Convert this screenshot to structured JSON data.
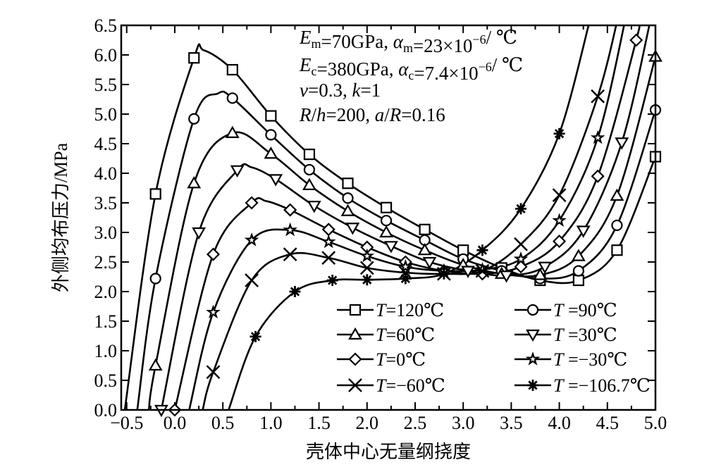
{
  "chart_data": {
    "type": "line",
    "xlabel": "壳体中心无量纲挠度",
    "ylabel": "外侧均布压力/MPa",
    "xlim": [
      -0.557,
      5.0
    ],
    "ylim": [
      0,
      6.5
    ],
    "xticks": [
      "−0.5",
      "0.0",
      "0.5",
      "1.0",
      "1.5",
      "2.0",
      "2.5",
      "3.0",
      "3.5",
      "4.0",
      "4.5",
      "5.0"
    ],
    "xtick_values": [
      -0.5,
      0,
      0.5,
      1,
      1.5,
      2,
      2.5,
      3,
      3.5,
      4,
      4.5,
      5
    ],
    "yticks": [
      "0.0",
      "0.5",
      "1.0",
      "1.5",
      "2.0",
      "2.5",
      "3.0",
      "3.5",
      "4.0",
      "4.5",
      "5.0",
      "5.5",
      "6.0",
      "6.5"
    ],
    "ytick_values": [
      0,
      0.5,
      1,
      1.5,
      2,
      2.5,
      3,
      3.5,
      4,
      4.5,
      5,
      5.5,
      6,
      6.5
    ],
    "grid": false,
    "legend_placement": "bottom-right",
    "annotations": [
      [
        {
          "t": "E",
          "s": "i"
        },
        {
          "t": "m",
          "s": "sub"
        },
        {
          "t": "=70GPa,  ",
          "s": ""
        },
        {
          "t": "α",
          "s": "i"
        },
        {
          "t": "m",
          "s": "sub"
        },
        {
          "t": "=23×10",
          "s": ""
        },
        {
          "t": "−6",
          "s": "sup"
        },
        {
          "t": "/ ℃",
          "s": ""
        }
      ],
      [
        {
          "t": "E",
          "s": "i"
        },
        {
          "t": "c",
          "s": "sub"
        },
        {
          "t": "=380GPa, ",
          "s": ""
        },
        {
          "t": "α",
          "s": "i"
        },
        {
          "t": "c",
          "s": "sub"
        },
        {
          "t": "=7.4×10",
          "s": ""
        },
        {
          "t": "−6",
          "s": "sup"
        },
        {
          "t": "/ ℃",
          "s": ""
        }
      ],
      [
        {
          "t": "ν",
          "s": "i"
        },
        {
          "t": "=0.3, ",
          "s": ""
        },
        {
          "t": "k",
          "s": "i"
        },
        {
          "t": "=1",
          "s": ""
        }
      ],
      [
        {
          "t": "R",
          "s": "i"
        },
        {
          "t": "/",
          "s": ""
        },
        {
          "t": "h",
          "s": "i"
        },
        {
          "t": "=200, ",
          "s": ""
        },
        {
          "t": "a",
          "s": "i"
        },
        {
          "t": "/",
          "s": ""
        },
        {
          "t": "R",
          "s": "i"
        },
        {
          "t": "=0.16",
          "s": ""
        }
      ]
    ],
    "series": [
      {
        "name": "T=120℃",
        "marker": "square",
        "points": [
          [
            -0.2,
            3.65
          ],
          [
            0.2,
            5.95
          ],
          [
            0.6,
            5.75
          ],
          [
            1.0,
            4.97
          ],
          [
            1.4,
            4.32
          ],
          [
            1.8,
            3.83
          ],
          [
            2.2,
            3.42
          ],
          [
            2.6,
            3.05
          ],
          [
            3.0,
            2.7
          ],
          [
            3.4,
            2.4
          ],
          [
            3.8,
            2.19
          ],
          [
            4.2,
            2.19
          ],
          [
            4.6,
            2.7
          ],
          [
            5.0,
            4.28
          ]
        ],
        "curve_extra": [
          [
            -0.52,
            0
          ],
          [
            0.3,
            6.08
          ]
        ]
      },
      {
        "name": "T =90℃",
        "marker": "circle",
        "points": [
          [
            -0.2,
            2.22
          ],
          [
            0.2,
            4.92
          ],
          [
            0.6,
            5.27
          ],
          [
            1.0,
            4.65
          ],
          [
            1.4,
            4.06
          ],
          [
            1.8,
            3.58
          ],
          [
            2.2,
            3.2
          ],
          [
            2.6,
            2.87
          ],
          [
            3.0,
            2.55
          ],
          [
            3.4,
            2.35
          ],
          [
            3.8,
            2.22
          ],
          [
            4.2,
            2.35
          ],
          [
            4.6,
            3.12
          ],
          [
            5.0,
            5.07
          ]
        ],
        "curve_extra": [
          [
            -0.39,
            0
          ],
          [
            0.45,
            5.35
          ]
        ]
      },
      {
        "name": "T=60℃",
        "marker": "triangle-up",
        "points": [
          [
            -0.2,
            0.75
          ],
          [
            0.2,
            3.83
          ],
          [
            0.6,
            4.68
          ],
          [
            1.0,
            4.33
          ],
          [
            1.4,
            3.8
          ],
          [
            1.8,
            3.36
          ],
          [
            2.2,
            3.0
          ],
          [
            2.6,
            2.7
          ],
          [
            3.0,
            2.45
          ],
          [
            3.4,
            2.3
          ],
          [
            3.8,
            2.28
          ],
          [
            4.2,
            2.6
          ],
          [
            4.6,
            3.62
          ],
          [
            5.0,
            5.97
          ]
        ],
        "curve_extra": [
          [
            -0.27,
            0
          ]
        ]
      },
      {
        "name": "T =30℃",
        "marker": "triangle-down",
        "points": [
          [
            -0.14,
            0.0
          ],
          [
            0.25,
            3.0
          ],
          [
            0.65,
            4.05
          ],
          [
            1.05,
            3.9
          ],
          [
            1.45,
            3.45
          ],
          [
            1.85,
            3.08
          ],
          [
            2.25,
            2.77
          ],
          [
            2.65,
            2.5
          ],
          [
            3.05,
            2.35
          ],
          [
            3.45,
            2.27
          ],
          [
            3.85,
            2.42
          ],
          [
            4.25,
            3.03
          ],
          [
            4.65,
            4.52
          ]
        ],
        "curve_extra": [
          [
            0.8,
            4.1
          ],
          [
            4.95,
            6.6
          ]
        ]
      },
      {
        "name": "T=0℃",
        "marker": "diamond",
        "points": [
          [
            0.0,
            0.0
          ],
          [
            0.4,
            2.63
          ],
          [
            0.8,
            3.5
          ],
          [
            1.2,
            3.38
          ],
          [
            1.6,
            3.05
          ],
          [
            2.0,
            2.75
          ],
          [
            2.4,
            2.5
          ],
          [
            2.8,
            2.35
          ],
          [
            3.2,
            2.3
          ],
          [
            3.6,
            2.42
          ],
          [
            4.0,
            2.85
          ],
          [
            4.4,
            3.95
          ],
          [
            4.8,
            6.25
          ]
        ],
        "curve_extra": [
          [
            0.95,
            3.53
          ],
          [
            4.85,
            6.7
          ]
        ]
      },
      {
        "name": "T =−30℃",
        "marker": "star",
        "points": [
          [
            0.4,
            1.65
          ],
          [
            0.8,
            2.87
          ],
          [
            1.2,
            3.04
          ],
          [
            1.6,
            2.84
          ],
          [
            2.0,
            2.6
          ],
          [
            2.4,
            2.42
          ],
          [
            2.8,
            2.35
          ],
          [
            3.2,
            2.37
          ],
          [
            3.6,
            2.55
          ],
          [
            4.0,
            3.2
          ],
          [
            4.4,
            4.6
          ]
        ],
        "curve_extra": [
          [
            0.15,
            0
          ],
          [
            4.7,
            6.7
          ]
        ]
      },
      {
        "name": "T=−60℃",
        "marker": "x",
        "points": [
          [
            0.4,
            0.64
          ],
          [
            0.8,
            2.19
          ],
          [
            1.2,
            2.63
          ],
          [
            1.6,
            2.57
          ],
          [
            2.0,
            2.4
          ],
          [
            2.4,
            2.32
          ],
          [
            2.8,
            2.3
          ],
          [
            3.2,
            2.35
          ],
          [
            3.6,
            2.8
          ],
          [
            4.0,
            3.63
          ],
          [
            4.4,
            5.3
          ]
        ],
        "curve_extra": [
          [
            0.29,
            0
          ],
          [
            4.62,
            6.7
          ]
        ]
      },
      {
        "name": "T =−106.7℃",
        "marker": "asterisk",
        "points": [
          [
            0.84,
            1.24
          ],
          [
            1.25,
            2.0
          ],
          [
            1.64,
            2.19
          ],
          [
            2.0,
            2.2
          ],
          [
            2.4,
            2.22
          ],
          [
            2.8,
            2.3
          ],
          [
            3.2,
            2.7
          ],
          [
            3.6,
            3.4
          ],
          [
            4.0,
            4.67
          ]
        ],
        "curve_extra": [
          [
            0.56,
            0
          ],
          [
            4.32,
            6.6
          ]
        ]
      }
    ]
  }
}
